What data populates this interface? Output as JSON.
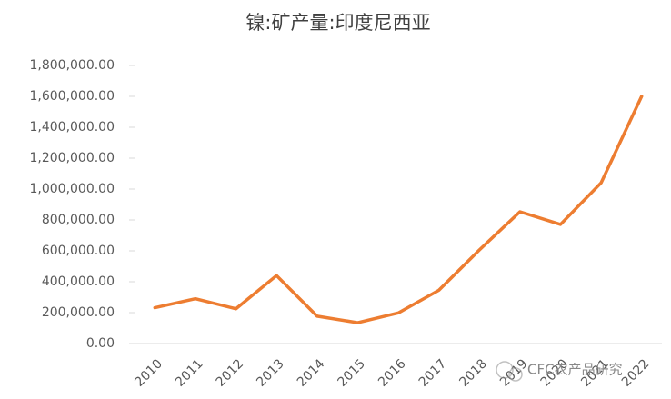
{
  "chart_data": {
    "type": "line",
    "title": "镍:矿产量:印度尼西亚",
    "categories": [
      "2010",
      "2011",
      "2012",
      "2013",
      "2014",
      "2015",
      "2016",
      "2017",
      "2018",
      "2019",
      "2020",
      "2021",
      "2022"
    ],
    "series": [
      {
        "name": "镍:矿产量:印度尼西亚",
        "color": "#ED7D31",
        "values": [
          232000,
          290000,
          225000,
          440000,
          177000,
          135000,
          198000,
          345000,
          606000,
          853000,
          771000,
          1040000,
          1600000
        ]
      }
    ],
    "ylim": [
      0,
      1800000
    ],
    "yticks": [
      {
        "value": 0,
        "label": "0.00"
      },
      {
        "value": 200000,
        "label": "200,000.00"
      },
      {
        "value": 400000,
        "label": "400,000.00"
      },
      {
        "value": 600000,
        "label": "600,000.00"
      },
      {
        "value": 800000,
        "label": "800,000.00"
      },
      {
        "value": 1000000,
        "label": "1,000,000.00"
      },
      {
        "value": 1200000,
        "label": "1,200,000.00"
      },
      {
        "value": 1400000,
        "label": "1,400,000.00"
      },
      {
        "value": 1600000,
        "label": "1,600,000.00"
      },
      {
        "value": 1800000,
        "label": "1,800,000.00"
      }
    ],
    "grid": false,
    "watermark": "CFC农产品研究"
  }
}
